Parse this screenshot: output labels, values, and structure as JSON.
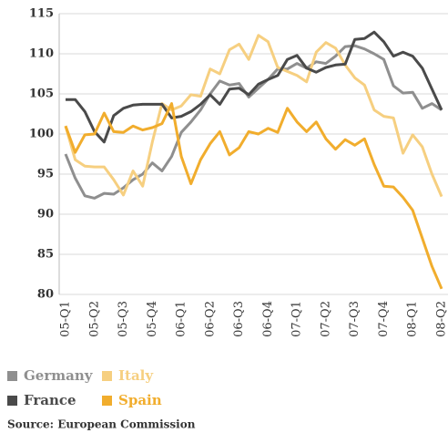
{
  "chart_data": {
    "type": "line",
    "categories": [
      "05-Q1",
      null,
      null,
      "05-Q2",
      null,
      null,
      "05-Q3",
      null,
      null,
      "05-Q4",
      null,
      null,
      "06-Q1",
      null,
      null,
      "06-Q2",
      null,
      null,
      "06-Q3",
      null,
      null,
      "06-Q4",
      null,
      null,
      "07-Q1",
      null,
      null,
      "07-Q2",
      null,
      null,
      "07-Q3",
      null,
      null,
      "07-Q4",
      null,
      null,
      "08-Q1",
      null,
      null,
      "08-Q2"
    ],
    "series": [
      {
        "name": "Germany",
        "color": "#8f8f8f",
        "values": [
          97.5,
          94.5,
          92.3,
          92,
          92.6,
          92.5,
          93.3,
          94.3,
          95,
          96.4,
          95.4,
          97.2,
          100.2,
          101.5,
          103,
          105,
          106.6,
          106.1,
          106.3,
          104.6,
          105.7,
          106.8,
          108.1,
          108.1,
          108.8,
          108.2,
          109,
          108.8,
          109.7,
          110.9,
          111,
          110.6,
          110,
          109.3,
          106,
          105.1,
          105.2,
          103.2,
          103.8,
          103
        ]
      },
      {
        "name": "Italy",
        "color": "#f6cf80",
        "values": [
          101,
          96.8,
          96,
          95.9,
          95.9,
          94.3,
          92.4,
          95.4,
          93.5,
          99,
          103.8,
          103,
          103.5,
          104.9,
          104.7,
          108.1,
          107.5,
          110.5,
          111.2,
          109.3,
          112.3,
          111.5,
          108.3,
          107.8,
          107.3,
          106.5,
          110.2,
          111.4,
          110.7,
          108.6,
          107,
          106.1,
          103,
          102.2,
          102,
          97.6,
          99.9,
          98.4,
          95,
          92.2
        ]
      },
      {
        "name": "France",
        "color": "#4a4a4a",
        "values": [
          104.3,
          104.3,
          102.8,
          100.3,
          99,
          102.3,
          103.2,
          103.6,
          103.7,
          103.7,
          103.7,
          102,
          102.2,
          102.8,
          103.7,
          104.9,
          103.7,
          105.6,
          105.7,
          104.9,
          106.2,
          106.8,
          107.3,
          109.3,
          109.8,
          108.2,
          107.7,
          108.3,
          108.6,
          108.7,
          111.8,
          111.9,
          112.7,
          111.5,
          109.7,
          110.2,
          109.7,
          108.2,
          105.6,
          103
        ]
      },
      {
        "name": "Spain",
        "color": "#f1ad2d",
        "values": [
          101,
          97.7,
          99.9,
          100,
          102.6,
          100.3,
          100.2,
          101,
          100.5,
          100.8,
          101.3,
          103.8,
          97.2,
          93.8,
          96.8,
          98.8,
          100.3,
          97.4,
          98.3,
          100.3,
          100,
          100.7,
          100.2,
          103.2,
          101.5,
          100.3,
          101.5,
          99.4,
          98.1,
          99.3,
          98.6,
          99.4,
          96.2,
          93.5,
          93.4,
          92.1,
          90.5,
          87,
          83.5,
          80.7
        ]
      }
    ],
    "ylim": [
      80,
      115
    ],
    "yticks": [
      80,
      85,
      90,
      95,
      100,
      105,
      110,
      115
    ],
    "grid": true,
    "legend": "bottom-left",
    "source": "Source: European Commission"
  }
}
